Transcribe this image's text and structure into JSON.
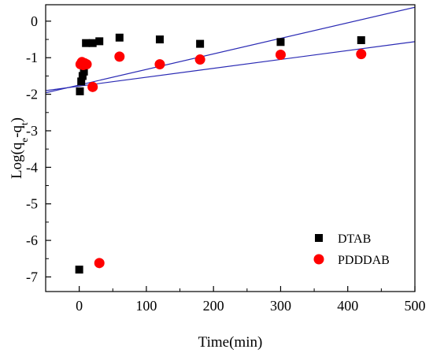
{
  "chart_data": {
    "type": "scatter",
    "xlabel": "Time(min)",
    "ylabel": "Log(q",
    "ylabel_sub_e": "e",
    "ylabel_mid": "-q",
    "ylabel_sub_t": "t",
    "ylabel_end": ")",
    "xlim": [
      -50,
      500
    ],
    "ylim": [
      -7.4,
      0.45
    ],
    "x_ticks": [
      0,
      100,
      200,
      300,
      400,
      500
    ],
    "y_ticks": [
      0,
      -1,
      -2,
      -3,
      -4,
      -5,
      -6,
      -7
    ],
    "grid": false,
    "legend_position": "bottom-right",
    "series": [
      {
        "name": "DTAB",
        "marker": "square",
        "color": "#000000",
        "points": [
          {
            "x": 1,
            "y": -1.92
          },
          {
            "x": 3,
            "y": -1.65
          },
          {
            "x": 5,
            "y": -1.5
          },
          {
            "x": 7,
            "y": -1.38
          },
          {
            "x": 10,
            "y": -0.6
          },
          {
            "x": 20,
            "y": -0.6
          },
          {
            "x": 30,
            "y": -0.55
          },
          {
            "x": 60,
            "y": -0.45
          },
          {
            "x": 120,
            "y": -0.5
          },
          {
            "x": 180,
            "y": -0.62
          },
          {
            "x": 300,
            "y": -0.57
          },
          {
            "x": 420,
            "y": -0.52
          },
          {
            "x": 0,
            "y": -6.8
          }
        ]
      },
      {
        "name": "PDDDAB",
        "marker": "circle",
        "color": "#ff0000",
        "points": [
          {
            "x": 2,
            "y": -1.18
          },
          {
            "x": 4,
            "y": -1.12
          },
          {
            "x": 6,
            "y": -1.2
          },
          {
            "x": 8,
            "y": -1.15
          },
          {
            "x": 11,
            "y": -1.18
          },
          {
            "x": 20,
            "y": -1.8
          },
          {
            "x": 60,
            "y": -0.97
          },
          {
            "x": 120,
            "y": -1.18
          },
          {
            "x": 180,
            "y": -1.05
          },
          {
            "x": 300,
            "y": -0.92
          },
          {
            "x": 420,
            "y": -0.9
          },
          {
            "x": 30,
            "y": -6.62
          }
        ]
      }
    ],
    "fit_lines": [
      {
        "color": "#2a2ab4",
        "x": [
          -50,
          500
        ],
        "y": [
          -1.96,
          0.38
        ]
      },
      {
        "color": "#2a2ab4",
        "x": [
          -50,
          500
        ],
        "y": [
          -1.9,
          -0.56
        ]
      }
    ]
  }
}
